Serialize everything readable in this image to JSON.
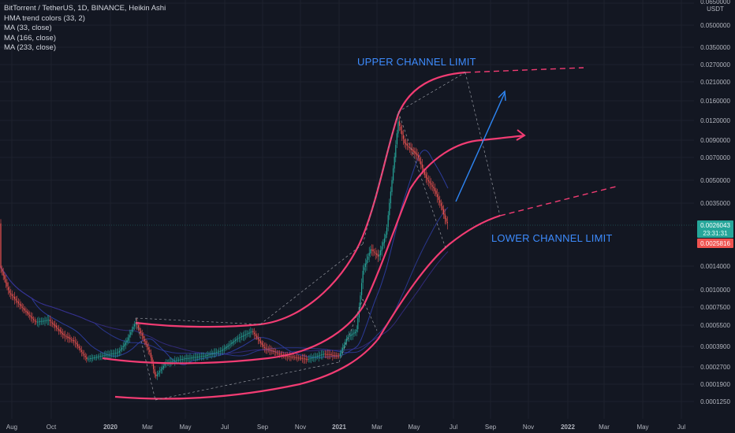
{
  "legend": {
    "title": "BitTorrent / TetherUS, 1D, BINANCE, Heikin Ashi",
    "indicators": [
      "HMA trend colors (33, 2)",
      "MA (33, close)",
      "MA (166, close)",
      "MA (233, close)"
    ]
  },
  "annotations": {
    "upper": "UPPER CHANNEL LIMIT",
    "lower": "LOWER CHANNEL LIMIT"
  },
  "colors": {
    "background": "#131722",
    "grid": "#1e222d",
    "axis_text": "#b2b5be",
    "channel": "#f23c73",
    "arrow_blue": "#2e86f5",
    "guide": "#9598a1",
    "up_candle": "#26a69a",
    "down_candle": "#ef5350",
    "ma": "#2f3fa6",
    "price_badge_green": "#26a69a",
    "price_badge_red": "#ef5350"
  },
  "chart_data": {
    "type": "candlestick",
    "scale": "log",
    "x_ticks": [
      "Aug",
      "Oct",
      "2020",
      "Mar",
      "May",
      "Jul",
      "Sep",
      "Nov",
      "2021",
      "Mar",
      "May",
      "Jul",
      "Sep",
      "Nov",
      "2022",
      "Mar",
      "May",
      "Jul"
    ],
    "y_ticks": [
      "0.0650000",
      "0.0500000",
      "0.0350000",
      "0.0270000",
      "0.0210000",
      "0.0160000",
      "0.0120000",
      "0.0090000",
      "0.0070000",
      "0.0050000",
      "0.0035000",
      "0.0014000",
      "0.0010000",
      "0.0007500",
      "0.0005500",
      "0.0003900",
      "0.0002700",
      "0.0001900",
      "0.0001250"
    ],
    "y_unit": "USDT",
    "last_price": "0.0026043",
    "countdown": "23:31:31",
    "second_price": "0.0025816"
  }
}
